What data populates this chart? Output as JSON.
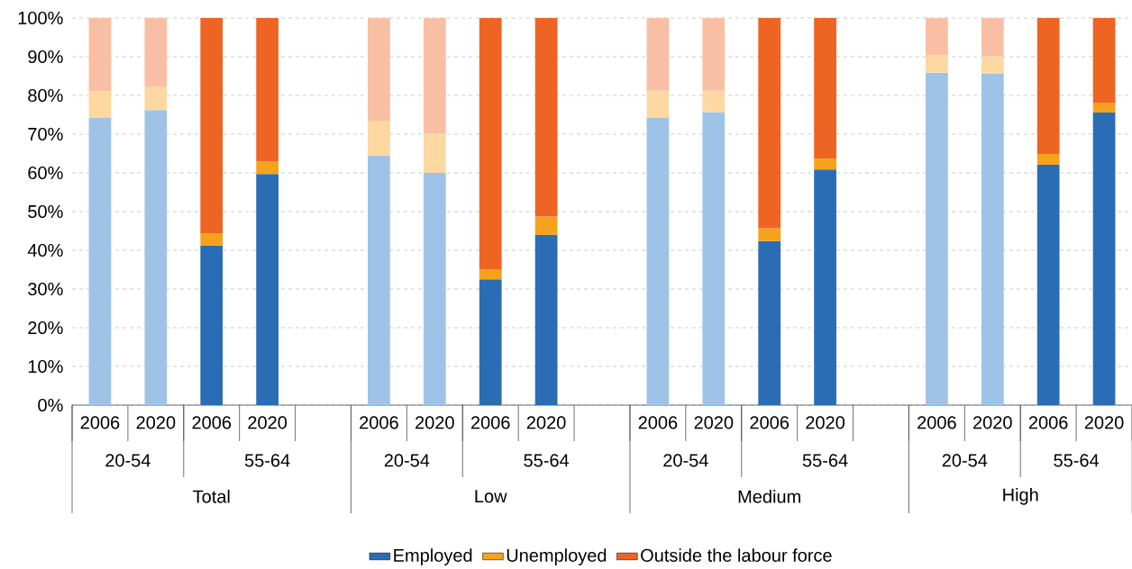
{
  "chart_data": {
    "type": "bar",
    "stacked": true,
    "categories": [
      "2006",
      "2020",
      "2006",
      "2020",
      null,
      "2006",
      "2020",
      "2006",
      "2020",
      null,
      "2006",
      "2020",
      "2006",
      "2020",
      null,
      "2006",
      "2020",
      "2006",
      "2020"
    ],
    "series": [
      {
        "name": "Employed",
        "color": "#2a6db4",
        "colors": [
          "#9fc3e7",
          "#9fc3e7",
          "#2a6db4",
          "#2a6db4",
          null,
          "#9fc3e7",
          "#9fc3e7",
          "#2a6db4",
          "#2a6db4",
          null,
          "#9fc3e7",
          "#9fc3e7",
          "#2a6db4",
          "#2a6db4",
          null,
          "#9fc3e7",
          "#9fc3e7",
          "#2a6db4",
          "#2a6db4"
        ],
        "values": [
          74.2,
          76.2,
          41.2,
          59.7,
          null,
          64.5,
          60.0,
          32.5,
          44.0,
          null,
          74.2,
          75.7,
          42.4,
          60.9,
          null,
          85.9,
          85.6,
          62.1,
          75.6
        ]
      },
      {
        "name": "Unemployed",
        "color": "#f5a31b",
        "colors": [
          "#fdd8a0",
          "#fdd8a0",
          "#f5a31b",
          "#f5a31b",
          null,
          "#fdd8a0",
          "#fdd8a0",
          "#f5a31b",
          "#f5a31b",
          null,
          "#fdd8a0",
          "#fdd8a0",
          "#f5a31b",
          "#f5a31b",
          null,
          "#fdd8a0",
          "#fdd8a0",
          "#f5a31b",
          "#f5a31b"
        ],
        "values": [
          6.9,
          6.0,
          3.1,
          3.2,
          null,
          9.0,
          10.2,
          2.5,
          4.7,
          null,
          7.0,
          5.5,
          3.3,
          2.8,
          null,
          4.5,
          4.5,
          2.8,
          2.5
        ]
      },
      {
        "name": "Outside the labour force",
        "color": "#ee6423",
        "colors": [
          "#f8bfa5",
          "#f8bfa5",
          "#ee6423",
          "#ee6423",
          null,
          "#f8bfa5",
          "#f8bfa5",
          "#ee6423",
          "#ee6423",
          null,
          "#f8bfa5",
          "#f8bfa5",
          "#ee6423",
          "#ee6423",
          null,
          "#f8bfa5",
          "#f8bfa5",
          "#ee6423",
          "#ee6423"
        ],
        "values": [
          18.9,
          17.8,
          55.7,
          37.1,
          null,
          26.5,
          29.8,
          65.0,
          51.3,
          null,
          18.8,
          18.8,
          54.3,
          36.3,
          null,
          9.6,
          9.9,
          35.1,
          21.9
        ]
      }
    ],
    "annotations": [
      "20-54",
      "55-64",
      "20-54",
      "55-64",
      "20-54",
      "55-64",
      "20-54",
      "55-64",
      "Total",
      "Low",
      "Medium",
      "High"
    ],
    "ylim": [
      0,
      100
    ],
    "yticks": [
      {
        "value": 0,
        "label": "0%"
      },
      {
        "value": 10,
        "label": "10%"
      },
      {
        "value": 20,
        "label": "20%"
      },
      {
        "value": 30,
        "label": "30%"
      },
      {
        "value": 40,
        "label": "40%"
      },
      {
        "value": 50,
        "label": "50%"
      },
      {
        "value": 60,
        "label": "60%"
      },
      {
        "value": 70,
        "label": "70%"
      },
      {
        "value": 80,
        "label": "80%"
      },
      {
        "value": 90,
        "label": "90%"
      },
      {
        "value": 100,
        "label": "100%"
      }
    ],
    "grid": "y",
    "legend": "bottom"
  }
}
